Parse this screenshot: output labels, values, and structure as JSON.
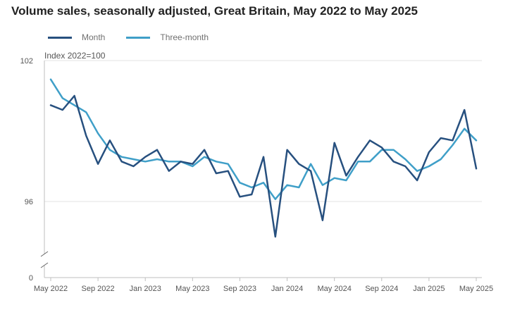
{
  "chart_data": {
    "type": "line",
    "title": "Volume sales, seasonally adjusted, Great Britain, May 2022 to May 2025",
    "ylabel": "Index 2022=100",
    "y_tick_labels": [
      "102",
      "96",
      "0"
    ],
    "ylim": [
      94.0,
      102
    ],
    "axis_break": true,
    "grid": true,
    "legend_position": "top-left",
    "x_tick_labels": [
      "May 2022",
      "Sep 2022",
      "Jan 2023",
      "May 2023",
      "Sep 2023",
      "Jan 2024",
      "May 2024",
      "Sep 2024",
      "Jan 2025",
      "May 2025"
    ],
    "x": [
      "May 2022",
      "Jun 2022",
      "Jul 2022",
      "Aug 2022",
      "Sep 2022",
      "Oct 2022",
      "Nov 2022",
      "Dec 2022",
      "Jan 2023",
      "Feb 2023",
      "Mar 2023",
      "Apr 2023",
      "May 2023",
      "Jun 2023",
      "Jul 2023",
      "Aug 2023",
      "Sep 2023",
      "Oct 2023",
      "Nov 2023",
      "Dec 2023",
      "Jan 2024",
      "Feb 2024",
      "Mar 2024",
      "Apr 2024",
      "May 2024",
      "Jun 2024",
      "Jul 2024",
      "Aug 2024",
      "Sep 2024",
      "Oct 2024",
      "Nov 2024",
      "Dec 2024",
      "Jan 2025",
      "Feb 2025",
      "Mar 2025",
      "Apr 2025",
      "May 2025"
    ],
    "series": [
      {
        "name": "Month",
        "color": "#27507f",
        "values": [
          100.1,
          99.9,
          100.5,
          98.8,
          97.6,
          98.6,
          97.7,
          97.5,
          97.9,
          98.2,
          97.3,
          97.7,
          97.6,
          98.2,
          97.2,
          97.3,
          96.2,
          96.3,
          97.9,
          94.5,
          98.2,
          97.6,
          97.3,
          95.2,
          98.5,
          97.1,
          97.9,
          98.6,
          98.3,
          97.7,
          97.5,
          96.9,
          98.1,
          98.7,
          98.6,
          99.9,
          97.4
        ]
      },
      {
        "name": "Three-month",
        "color": "#3f9fc8",
        "values": [
          101.2,
          100.4,
          100.1,
          99.8,
          98.9,
          98.2,
          97.9,
          97.8,
          97.7,
          97.8,
          97.7,
          97.7,
          97.5,
          97.9,
          97.7,
          97.6,
          96.8,
          96.6,
          96.8,
          96.1,
          96.7,
          96.6,
          97.6,
          96.7,
          97.0,
          96.9,
          97.7,
          97.7,
          98.2,
          98.2,
          97.8,
          97.3,
          97.5,
          97.8,
          98.4,
          99.1,
          98.6
        ]
      }
    ]
  }
}
